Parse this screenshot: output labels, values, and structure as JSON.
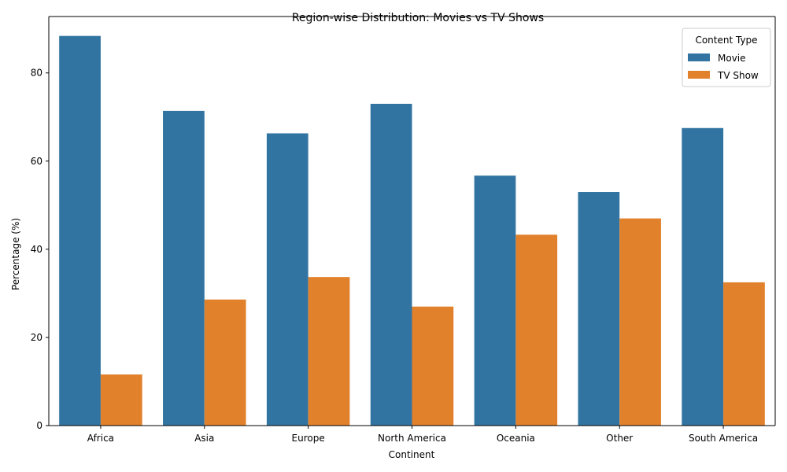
{
  "chart_data": {
    "type": "bar",
    "title": "Region-wise Distribution: Movies vs TV Shows",
    "xlabel": "Continent",
    "ylabel": "Percentage (%)",
    "categories": [
      "Africa",
      "Asia",
      "Europe",
      "North America",
      "Oceania",
      "Other",
      "South America"
    ],
    "series": [
      {
        "name": "Movie",
        "color": "#3274a1",
        "values": [
          88.4,
          71.4,
          66.3,
          73.0,
          56.7,
          53.0,
          67.5
        ]
      },
      {
        "name": "TV Show",
        "color": "#e1812c",
        "values": [
          11.6,
          28.6,
          33.7,
          27.0,
          43.3,
          47.0,
          32.5
        ]
      }
    ],
    "ylim": [
      0,
      92.8
    ],
    "yticks": [
      0,
      20,
      40,
      60,
      80
    ],
    "legend": {
      "title": "Content Type",
      "placement": "top-right"
    },
    "grid": false
  }
}
